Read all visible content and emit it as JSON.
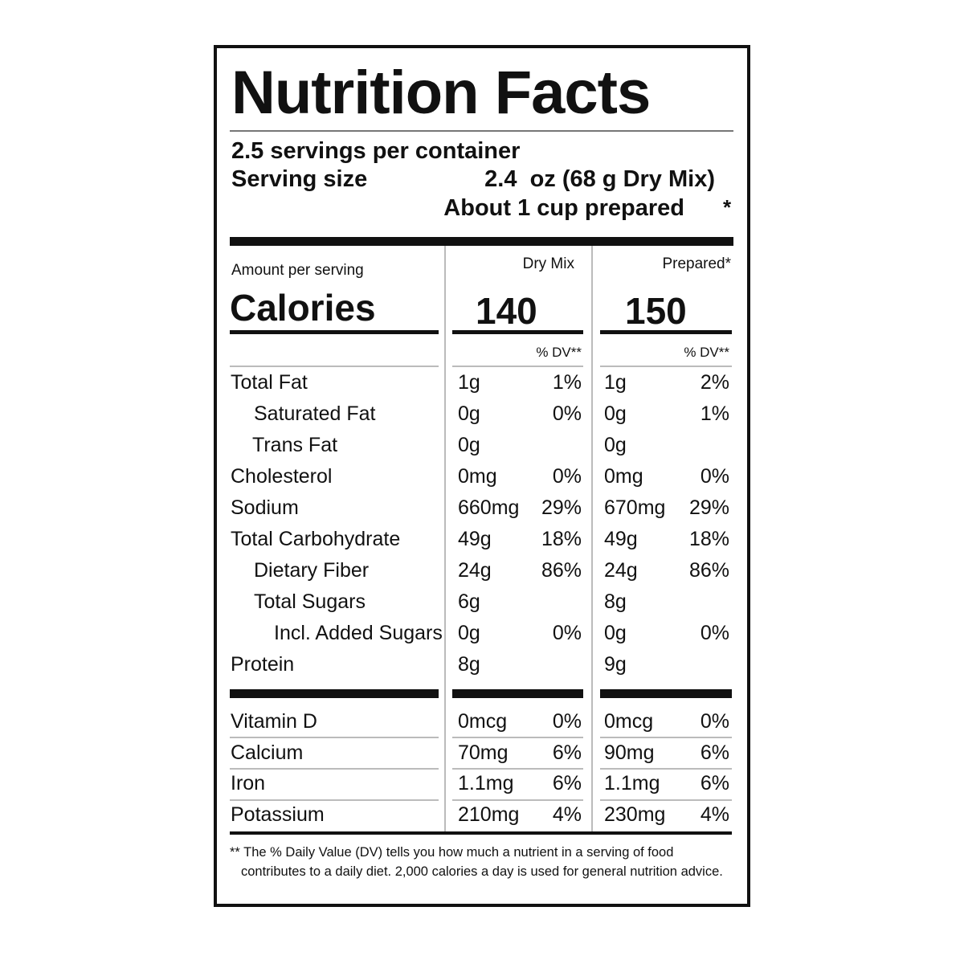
{
  "title": "Nutrition Facts",
  "servings": "2.5 servings per container",
  "serving_size": {
    "label": "Serving size",
    "value": "2.4  oz (68 g Dry Mix)",
    "prepared": "About 1 cup prepared",
    "mark": "*"
  },
  "amount_per_serving": "Amount per serving",
  "columns": [
    "Dry Mix",
    "Prepared*"
  ],
  "calories": {
    "label": "Calories",
    "values": [
      "140",
      "150"
    ]
  },
  "dv_header": [
    "% DV**",
    "% DV**"
  ],
  "nutrients": [
    {
      "name": "Total Fat",
      "dry_mix": [
        "1g",
        "1%"
      ],
      "prepared": [
        "1g",
        "2%"
      ]
    },
    {
      "name": "Saturated Fat",
      "dry_mix": [
        "0g",
        "0%"
      ],
      "prepared": [
        "0g",
        "1%"
      ]
    },
    {
      "name": "Trans Fat",
      "dry_mix": [
        "0g",
        null
      ],
      "prepared": [
        "0g",
        null
      ]
    },
    {
      "name": "Cholesterol",
      "dry_mix": [
        "0mg",
        "0%"
      ],
      "prepared": [
        "0mg",
        "0%"
      ]
    },
    {
      "name": "Sodium",
      "dry_mix": [
        "660mg",
        "29%"
      ],
      "prepared": [
        "670mg",
        "29%"
      ]
    },
    {
      "name": "Total Carbohydrate",
      "dry_mix": [
        "49g",
        "18%"
      ],
      "prepared": [
        "49g",
        "18%"
      ]
    },
    {
      "name": "Dietary Fiber",
      "dry_mix": [
        "24g",
        "86%"
      ],
      "prepared": [
        "24g",
        "86%"
      ]
    },
    {
      "name": "Total Sugars",
      "dry_mix": [
        "6g",
        null
      ],
      "prepared": [
        "8g",
        null
      ]
    },
    {
      "name": "Incl. Added Sugars",
      "dry_mix": [
        "0g",
        "0%"
      ],
      "prepared": [
        "0g",
        "0%"
      ]
    },
    {
      "name": "Protein",
      "dry_mix": [
        "8g",
        null
      ],
      "prepared": [
        "9g",
        null
      ]
    }
  ],
  "vitamins": [
    {
      "name": "Vitamin D",
      "dry_mix": [
        "0mcg",
        "0%"
      ],
      "prepared": [
        "0mcg",
        "0%"
      ]
    },
    {
      "name": "Calcium",
      "dry_mix": [
        "70mg",
        "6%"
      ],
      "prepared": [
        "90mg",
        "6%"
      ]
    },
    {
      "name": "Iron",
      "dry_mix": [
        "1.1mg",
        "6%"
      ],
      "prepared": [
        "1.1mg",
        "6%"
      ]
    },
    {
      "name": "Potassium",
      "dry_mix": [
        "210mg",
        "4%"
      ],
      "prepared": [
        "230mg",
        "4%"
      ]
    }
  ],
  "footnote": "** The % Daily Value (DV) tells you how much a nutrient in a serving of food contributes to a daily diet. 2,000 calories a day is used for general nutrition advice."
}
